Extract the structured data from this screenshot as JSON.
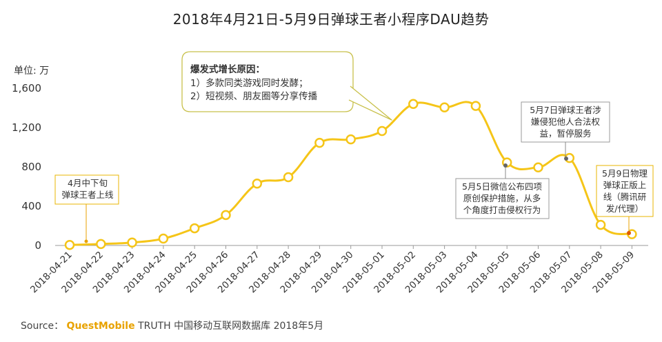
{
  "title": "2018年4月21日-5月9日弹球王者小程序DAU趋势",
  "unit_label": "单位: 万",
  "source": {
    "prefix": "Source：",
    "brand": "QuestMobile",
    "suffix": "TRUTH 中国移动互联网数据库 2018年5月"
  },
  "annotations": {
    "growth_title": "爆发式增长原因：",
    "growth_line1": "1）多款同类游戏同时发酵；",
    "growth_line2": "2）短视频、朋友圈等分享传播",
    "launch": "4月中下旬\n弹球王者上线",
    "wechat": "5月5日微信公布四项\n原创保护措施，从多\n个角度打击侵权行为",
    "suspend": "5月7日弹球王者涉\n嫌侵犯他人合法权\n益，暂停服务",
    "relaunch": "5月9日物理\n弹球正版上\n线（腾讯研\n发/代理）"
  },
  "colors": {
    "line": "#f5c518",
    "marker_fill": "#ffffff",
    "axis": "#999999",
    "callout_border": "#c8c04a",
    "box_border": "#e8b500",
    "pointer_orange": "#e8a200",
    "pointer_gray": "#888888"
  },
  "chart_data": {
    "type": "line",
    "categories": [
      "2018-04-21",
      "2018-04-22",
      "2018-04-23",
      "2018-04-24",
      "2018-04-25",
      "2018-04-26",
      "2018-04-27",
      "2018-04-28",
      "2018-04-29",
      "2018-04-30",
      "2018-05-01",
      "2018-05-02",
      "2018-05-03",
      "2018-05-04",
      "2018-05-05",
      "2018-05-06",
      "2018-05-07",
      "2018-05-08",
      "2018-05-09"
    ],
    "series": [
      {
        "values": [
          5,
          15,
          30,
          70,
          175,
          310,
          630,
          695,
          1045,
          1080,
          1165,
          1440,
          1405,
          1420,
          845,
          795,
          890,
          210,
          115
        ]
      }
    ],
    "ylim": [
      0,
      1600
    ],
    "yticks": [
      0,
      400,
      800,
      1200,
      1600
    ],
    "ytick_labels": [
      "0",
      "400",
      "800",
      "1,200",
      "1,600"
    ],
    "ylabel": "单位: 万",
    "grid": false
  }
}
